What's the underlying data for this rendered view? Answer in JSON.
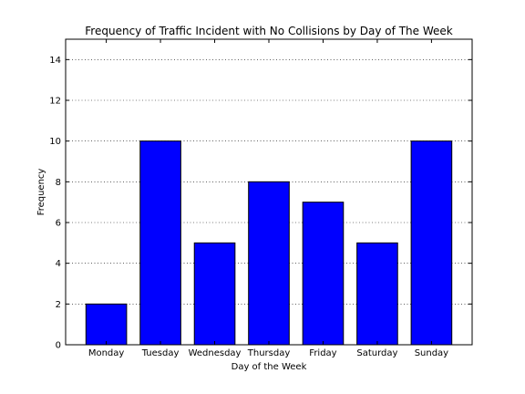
{
  "chart_data": {
    "type": "bar",
    "title": "Frequency of Traffic Incident with No Collisions by Day of The Week",
    "xlabel": "Day of the Week",
    "ylabel": "Frequency",
    "categories": [
      "Monday",
      "Tuesday",
      "Wednesday",
      "Thursday",
      "Friday",
      "Saturday",
      "Sunday"
    ],
    "values": [
      2,
      10,
      5,
      8,
      7,
      5,
      10
    ],
    "ylim": [
      0,
      15
    ],
    "yticks": [
      0,
      2,
      4,
      6,
      8,
      10,
      12,
      14
    ],
    "grid": "horizontal-dotted",
    "bar_color": "#0000ff",
    "bar_edge_color": "#000000"
  }
}
